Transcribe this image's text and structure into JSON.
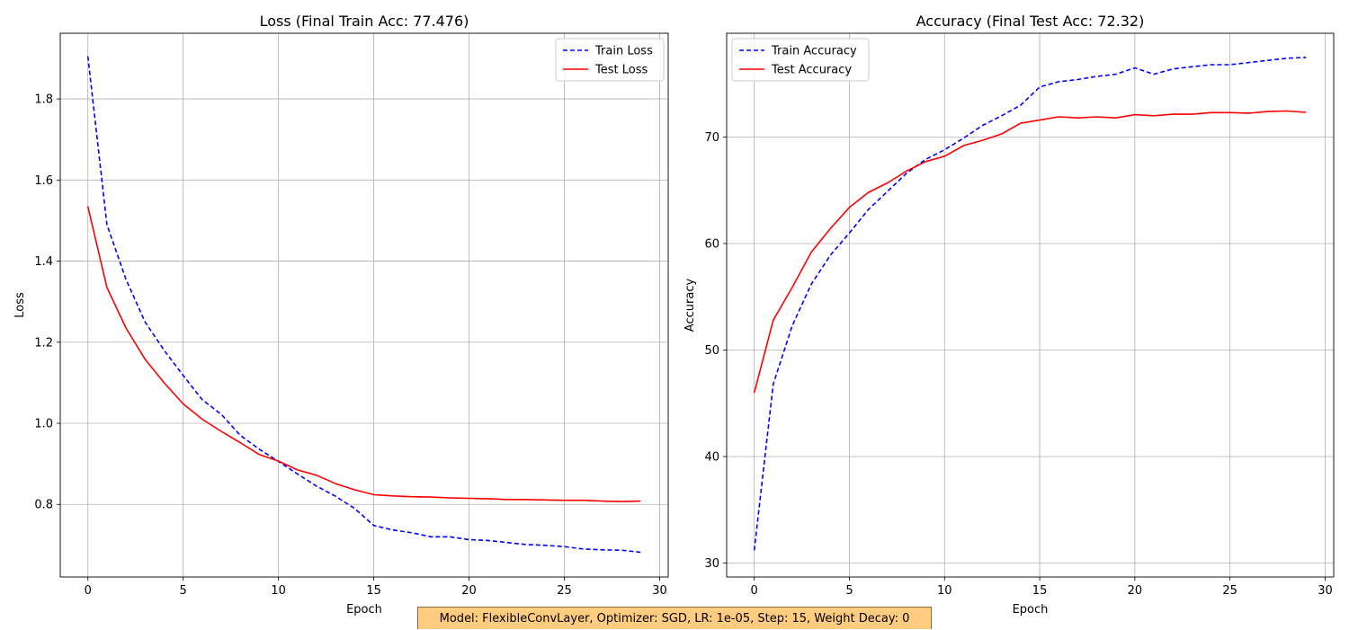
{
  "footer": {
    "text": "Model: FlexibleConvLayer, Optimizer: SGD, LR: 1e-05, Step: 15, Weight Decay: 0",
    "background": "#ffcc80"
  },
  "chart_data": [
    {
      "type": "line",
      "title": "Loss (Final Train Acc: 77.476)",
      "xlabel": "Epoch",
      "ylabel": "Loss",
      "xlim": [
        -1.45,
        30.45
      ],
      "ylim": [
        0.621,
        1.962
      ],
      "xticks": [
        0,
        5,
        10,
        15,
        20,
        25,
        30
      ],
      "xtick_labels": [
        "0",
        "5",
        "10",
        "15",
        "20",
        "25",
        "30"
      ],
      "yticks": [
        0.8,
        1.0,
        1.2,
        1.4,
        1.6,
        1.8
      ],
      "ytick_labels": [
        "0.8",
        "1.0",
        "1.2",
        "1.4",
        "1.6",
        "1.8"
      ],
      "grid": true,
      "legend": "top-right",
      "x": [
        0,
        1,
        2,
        3,
        4,
        5,
        6,
        7,
        8,
        9,
        10,
        11,
        12,
        13,
        14,
        15,
        16,
        17,
        18,
        19,
        20,
        21,
        22,
        23,
        24,
        25,
        26,
        27,
        28,
        29
      ],
      "series": [
        {
          "name": "Train Loss",
          "color": "#0000ff",
          "dash": "dashed",
          "values": [
            1.905,
            1.49,
            1.355,
            1.25,
            1.18,
            1.118,
            1.058,
            1.022,
            0.97,
            0.936,
            0.906,
            0.875,
            0.845,
            0.82,
            0.79,
            0.748,
            0.737,
            0.73,
            0.72,
            0.72,
            0.713,
            0.711,
            0.706,
            0.701,
            0.699,
            0.696,
            0.69,
            0.688,
            0.687,
            0.682
          ]
        },
        {
          "name": "Test Loss",
          "color": "#ff0000",
          "dash": "solid",
          "values": [
            1.535,
            1.335,
            1.235,
            1.158,
            1.1,
            1.048,
            1.01,
            0.98,
            0.952,
            0.923,
            0.907,
            0.885,
            0.872,
            0.851,
            0.836,
            0.824,
            0.821,
            0.819,
            0.818,
            0.816,
            0.815,
            0.814,
            0.812,
            0.812,
            0.811,
            0.81,
            0.81,
            0.808,
            0.807,
            0.808
          ]
        }
      ]
    },
    {
      "type": "line",
      "title": "Accuracy (Final Test Acc: 72.32)",
      "xlabel": "Epoch",
      "ylabel": "Accuracy",
      "xlim": [
        -1.45,
        30.45
      ],
      "ylim": [
        28.69,
        79.75
      ],
      "xticks": [
        0,
        5,
        10,
        15,
        20,
        25,
        30
      ],
      "xtick_labels": [
        "0",
        "5",
        "10",
        "15",
        "20",
        "25",
        "30"
      ],
      "yticks": [
        30,
        40,
        50,
        60,
        70
      ],
      "ytick_labels": [
        "30",
        "40",
        "50",
        "60",
        "70"
      ],
      "grid": true,
      "legend": "top-left",
      "x": [
        0,
        1,
        2,
        3,
        4,
        5,
        6,
        7,
        8,
        9,
        10,
        11,
        12,
        13,
        14,
        15,
        16,
        17,
        18,
        19,
        20,
        21,
        22,
        23,
        24,
        25,
        26,
        27,
        28,
        29
      ],
      "series": [
        {
          "name": "Train Accuracy",
          "color": "#0000ff",
          "dash": "dashed",
          "values": [
            31.2,
            46.8,
            52.3,
            56.2,
            58.9,
            61.0,
            63.2,
            64.9,
            66.6,
            67.9,
            68.8,
            69.9,
            71.1,
            72.0,
            73.0,
            74.7,
            75.2,
            75.4,
            75.7,
            75.9,
            76.5,
            75.9,
            76.4,
            76.6,
            76.8,
            76.8,
            77.0,
            77.2,
            77.4,
            77.48
          ]
        },
        {
          "name": "Test Accuracy",
          "color": "#ff0000",
          "dash": "solid",
          "values": [
            46.0,
            52.8,
            55.9,
            59.2,
            61.4,
            63.4,
            64.8,
            65.7,
            66.8,
            67.7,
            68.2,
            69.2,
            69.7,
            70.3,
            71.3,
            71.6,
            71.9,
            71.8,
            71.9,
            71.8,
            72.1,
            72.0,
            72.15,
            72.15,
            72.3,
            72.3,
            72.25,
            72.4,
            72.45,
            72.32
          ]
        }
      ]
    }
  ]
}
